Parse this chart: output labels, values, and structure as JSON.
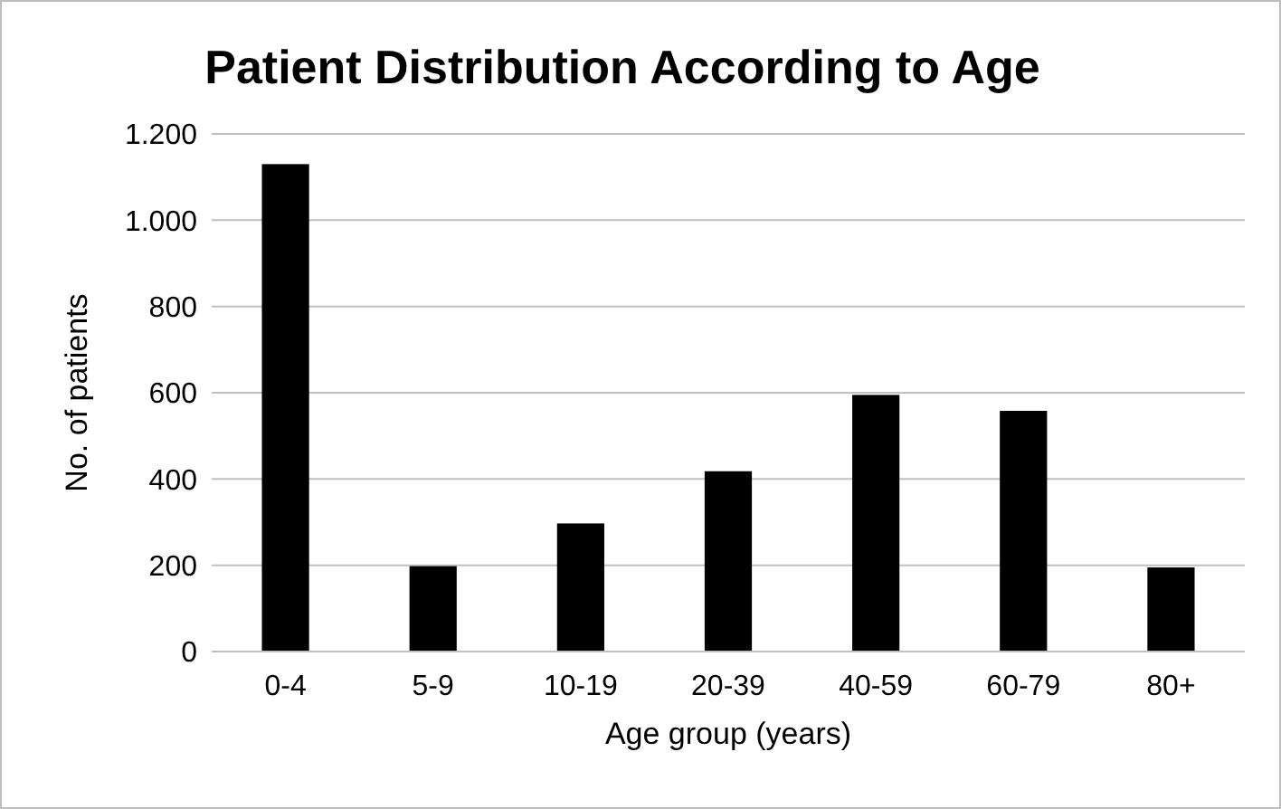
{
  "chart_data": {
    "type": "bar",
    "title": "Patient Distribution According to Age",
    "xlabel": "Age group (years)",
    "ylabel": "No. of patients",
    "categories": [
      "0-4",
      "5-9",
      "10-19",
      "20-39",
      "40-59",
      "60-79",
      "80+"
    ],
    "values": [
      1130,
      198,
      297,
      418,
      595,
      558,
      195
    ],
    "color": "#000000",
    "ylim": [
      0,
      1200
    ],
    "yticks": [
      0,
      200,
      400,
      600,
      800,
      {
        "value": 1000,
        "label": "1.000"
      },
      {
        "value": 1200,
        "label": "1.200"
      }
    ],
    "grid": "y"
  }
}
